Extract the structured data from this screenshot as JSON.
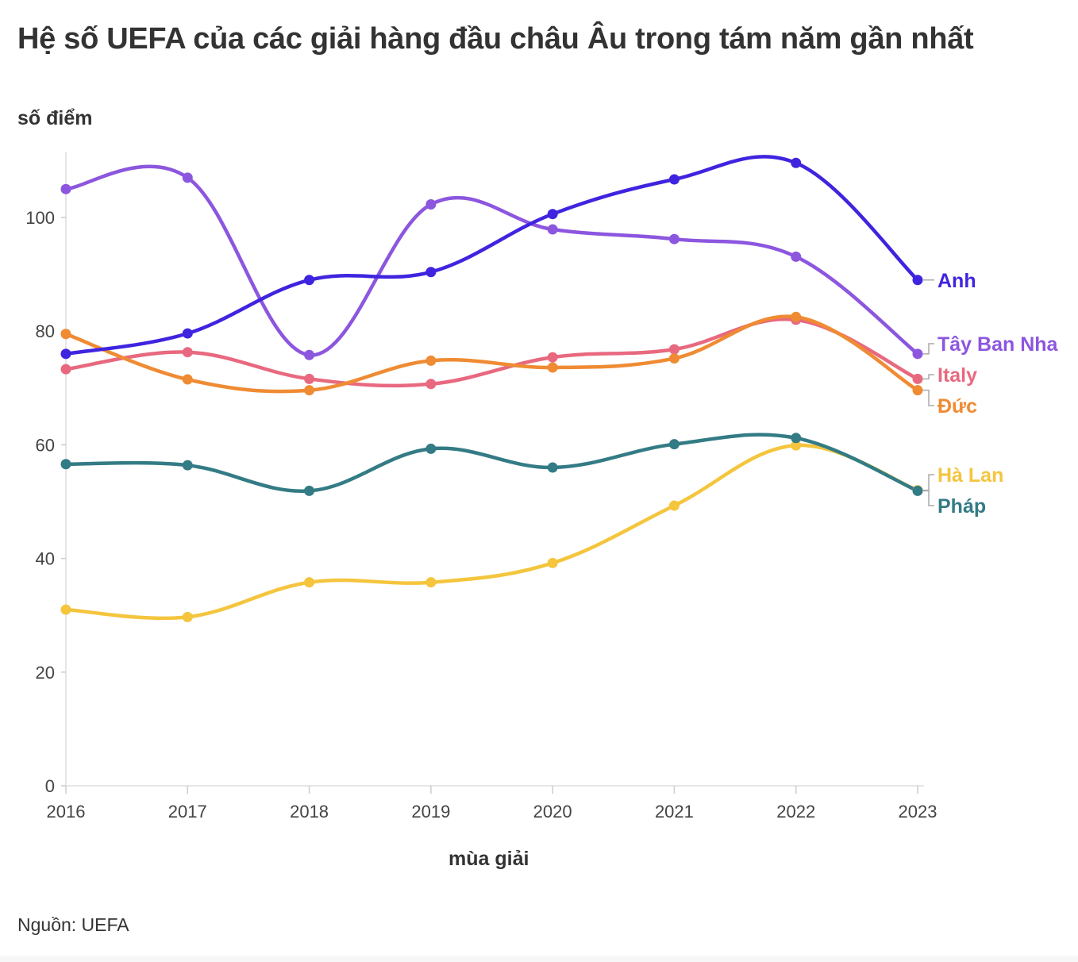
{
  "title": "Hệ số UEFA của các giải hàng đầu châu Âu trong tám năm gần nhất",
  "source": "Nguồn: UEFA",
  "chart_data": {
    "type": "line",
    "title": "Hệ số UEFA của các giải hàng đầu châu Âu trong tám năm gần nhất",
    "xlabel": "mùa giải",
    "ylabel": "số điểm",
    "x": [
      2016,
      2017,
      2018,
      2019,
      2020,
      2021,
      2022,
      2023
    ],
    "ylim": [
      0,
      110
    ],
    "yticks": [
      0,
      20,
      40,
      60,
      80,
      100
    ],
    "grid": false,
    "legend": "direct labels at right end of lines",
    "series": [
      {
        "name": "Anh",
        "color": "#3f24df",
        "values": [
          76.0,
          79.6,
          89.0,
          90.4,
          100.6,
          106.7,
          109.6,
          89.0
        ]
      },
      {
        "name": "Tây Ban Nha",
        "color": "#8c56df",
        "values": [
          105.0,
          107.0,
          75.8,
          102.3,
          97.9,
          96.2,
          93.1,
          76.0
        ]
      },
      {
        "name": "Italy",
        "color": "#e8697f",
        "values": [
          73.3,
          76.3,
          71.6,
          70.7,
          75.4,
          76.8,
          82.0,
          71.6
        ]
      },
      {
        "name": "Đức",
        "color": "#ef8b33",
        "values": [
          79.5,
          71.5,
          69.6,
          74.8,
          73.6,
          75.2,
          82.5,
          69.6
        ]
      },
      {
        "name": "Hà Lan",
        "color": "#f4c53d",
        "values": [
          31.0,
          29.7,
          35.8,
          35.8,
          39.2,
          49.3,
          59.9,
          52.0
        ]
      },
      {
        "name": "Pháp",
        "color": "#337b85",
        "values": [
          56.6,
          56.4,
          51.9,
          59.3,
          56.0,
          60.1,
          61.2,
          51.9
        ]
      }
    ]
  }
}
